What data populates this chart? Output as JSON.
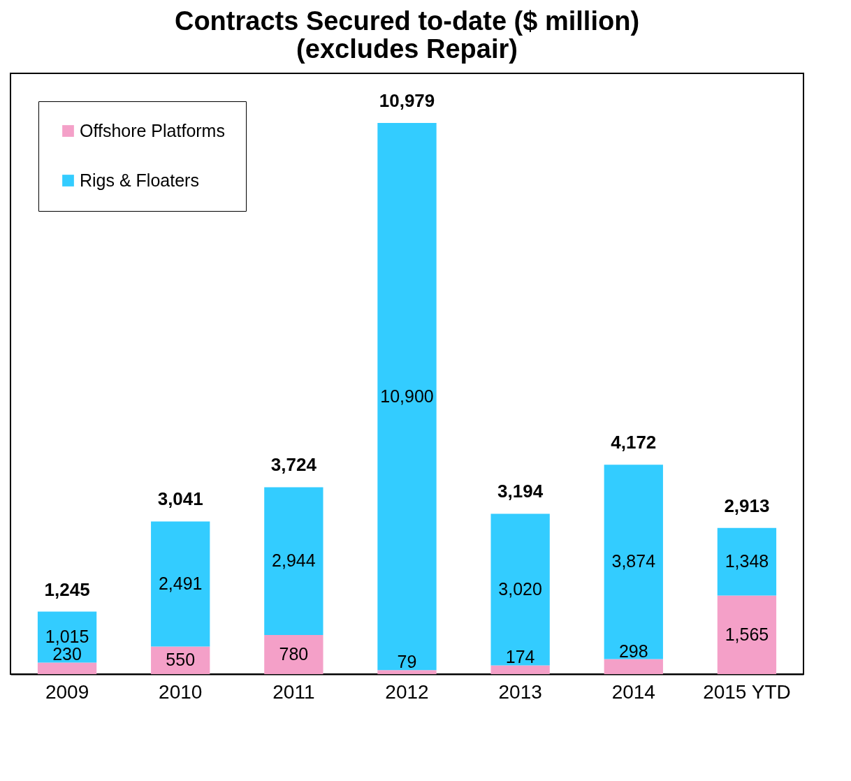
{
  "chart_data": {
    "type": "bar",
    "title": [
      "Contracts Secured to-date ($ million)",
      "(excludes Repair)"
    ],
    "categories": [
      "2009",
      "2010",
      "2011",
      "2012",
      "2013",
      "2014",
      "2015 YTD"
    ],
    "stacked": true,
    "legend": "top left",
    "series": [
      {
        "name": "Offshore Platforms",
        "color": "#f4a0c8",
        "values": [
          230,
          550,
          780,
          79,
          174,
          298,
          1565
        ],
        "value_labels": [
          "230",
          "550",
          "780",
          "79",
          "174",
          "298",
          "1,565"
        ]
      },
      {
        "name": "Rigs & Floaters",
        "color": "#33ccff",
        "values": [
          1015,
          2491,
          2944,
          10900,
          3020,
          3874,
          1348
        ],
        "value_labels": [
          "1,015",
          "2,491",
          "2,944",
          "10,900",
          "3,020",
          "3,874",
          "1,348"
        ]
      }
    ],
    "totals": [
      "1,245",
      "3,041",
      "3,724",
      "10,979",
      "3,194",
      "4,172",
      "2,913"
    ]
  }
}
